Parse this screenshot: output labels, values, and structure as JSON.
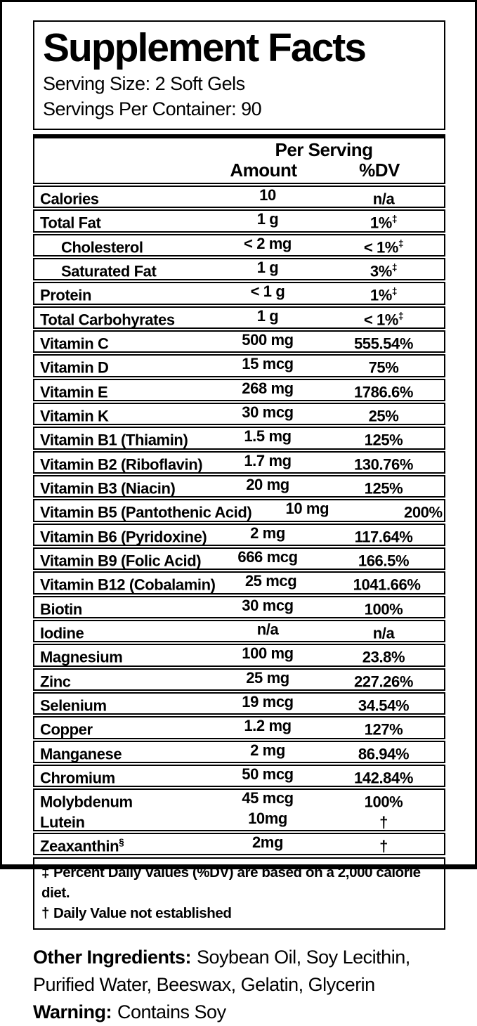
{
  "colors": {
    "ink": "#000000",
    "background": "#ffffff"
  },
  "label": {
    "title": "Supplement Facts",
    "serving_size": "Serving Size: 2 Soft Gels",
    "servings_per_container": "Servings Per Container: 90"
  },
  "table": {
    "header": {
      "per_serving": "Per Serving",
      "amount": "Amount",
      "dv": "%DV"
    },
    "rows": [
      {
        "name": "Calories",
        "amount": "10",
        "dv": "n/a"
      },
      {
        "name": "Total Fat",
        "amount": "1 g",
        "dv": "1%",
        "dv_mark": "‡"
      },
      {
        "name": "Cholesterol",
        "indent": true,
        "amount": "< 2 mg",
        "dv": "< 1%",
        "dv_mark": "‡"
      },
      {
        "name": "Saturated Fat",
        "indent": true,
        "amount": "1 g",
        "dv": "3%",
        "dv_mark": "‡"
      },
      {
        "name": "Protein",
        "amount": "< 1 g",
        "dv": "1%",
        "dv_mark": "‡"
      },
      {
        "name": "Total Carbohyrates",
        "amount": "1 g",
        "dv": "< 1%",
        "dv_mark": "‡"
      },
      {
        "name": "Vitamin C",
        "amount": "500 mg",
        "dv": "555.54%"
      },
      {
        "name": "Vitamin D",
        "amount": "15 mcg",
        "dv": "75%"
      },
      {
        "name": "Vitamin E",
        "amount": "268 mg",
        "dv": "1786.6%"
      },
      {
        "name": "Vitamin K",
        "amount": "30 mcg",
        "dv": "25%"
      },
      {
        "name": "Vitamin B1 (Thiamin)",
        "amount": "1.5 mg",
        "dv": "125%"
      },
      {
        "name": "Vitamin B2 (Riboflavin)",
        "amount": "1.7 mg",
        "dv": "130.76%"
      },
      {
        "name": "Vitamin B3 (Niacin)",
        "amount": "20 mg",
        "dv": "125%"
      },
      {
        "name": "Vitamin B5 (Pantothenic Acid)",
        "amount": "10 mg",
        "dv": "200%"
      },
      {
        "name": "Vitamin B6 (Pyridoxine)",
        "amount": "2 mg",
        "dv": "117.64%"
      },
      {
        "name": "Vitamin B9 (Folic Acid)",
        "amount": "666 mcg",
        "dv": "166.5%"
      },
      {
        "name": "Vitamin B12 (Cobalamin)",
        "amount": "25 mcg",
        "dv": "1041.66%"
      },
      {
        "name": "Biotin",
        "amount": "30 mcg",
        "dv": "100%"
      },
      {
        "name": "Iodine",
        "amount": "n/a",
        "dv": "n/a"
      },
      {
        "name": "Magnesium",
        "amount": "100 mg",
        "dv": "23.8%"
      },
      {
        "name": "Zinc",
        "amount": "25 mg",
        "dv": "227.26%"
      },
      {
        "name": "Selenium",
        "amount": "19 mcg",
        "dv": "34.54%"
      },
      {
        "name": "Copper",
        "amount": "1.2 mg",
        "dv": "127%"
      },
      {
        "name": "Manganese",
        "amount": "2 mg",
        "dv": "86.94%"
      },
      {
        "name": "Chromium",
        "amount": "50 mcg",
        "dv": "142.84%"
      },
      {
        "name": "Molybdenum",
        "amount": "45 mcg",
        "dv": "100%",
        "group_with_next": true
      },
      {
        "name": "Lutein",
        "amount": "10mg",
        "dv": "†"
      },
      {
        "name": "Zeaxanthin",
        "name_mark": "§",
        "amount": "2mg",
        "dv": "†"
      }
    ]
  },
  "footnotes": [
    {
      "mark": "‡",
      "text": "Percent Daily Values (%DV) are based on a 2,000 calorie diet."
    },
    {
      "mark": "†",
      "text": "Daily Value not established"
    }
  ],
  "other_ingredients": {
    "label": "Other Ingredients:",
    "text": "Soybean Oil, Soy Lecithin, Purified Water, Beeswax, Gelatin, Glycerin"
  },
  "warning": {
    "label": "Warning:",
    "text": "Contains Soy"
  }
}
